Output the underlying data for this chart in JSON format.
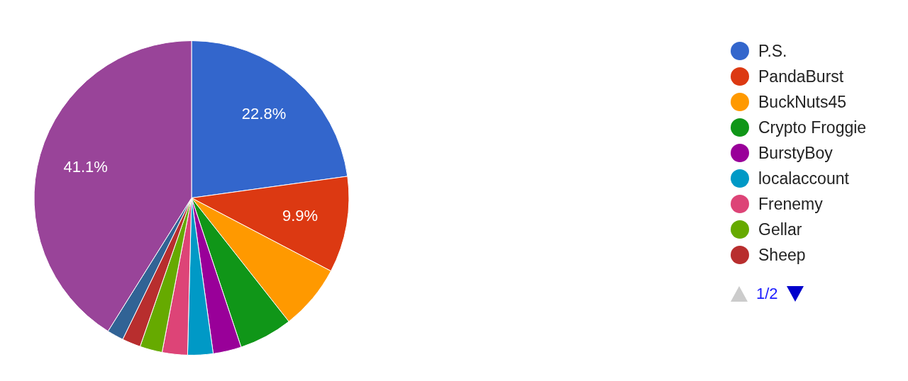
{
  "chart_data": {
    "type": "pie",
    "categories": [
      "P.S.",
      "PandaBurst",
      "BuckNuts45",
      "Crypto Froggie",
      "BurstyBoy",
      "localaccount",
      "Frenemy",
      "Gellar",
      "Sheep",
      null,
      null
    ],
    "values": [
      22.8,
      9.9,
      6.7,
      5.5,
      2.9,
      2.6,
      2.6,
      2.3,
      1.9,
      1.7,
      41.1
    ],
    "colors": [
      "#3366cc",
      "#dc3912",
      "#ff9900",
      "#109618",
      "#990099",
      "#0099c6",
      "#dd4477",
      "#66aa00",
      "#b82e2e",
      "#316395",
      "#994499"
    ],
    "value_labels": [
      "22.8%",
      "9.9%",
      null,
      null,
      null,
      null,
      null,
      null,
      null,
      null,
      "41.1%"
    ],
    "legend": "right",
    "annotations": [
      "1/2"
    ]
  }
}
